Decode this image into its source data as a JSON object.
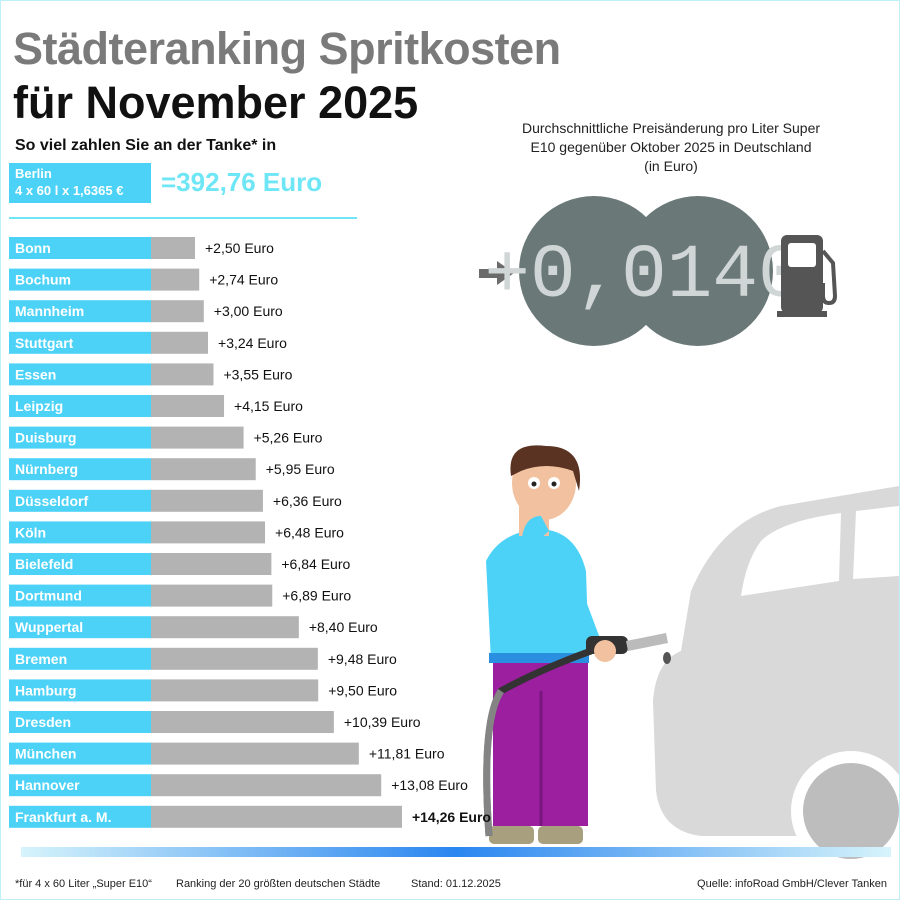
{
  "title_line1": "Städteranking Spritkosten",
  "title_line2": "für November 2025",
  "subtitle": "So viel zahlen Sie an der Tanke* in",
  "berlin": {
    "city": "Berlin",
    "formula": "4 x 60 l x 1,6365 €",
    "total": "=392,76 Euro"
  },
  "avg_change": {
    "label": "Durchschnittliche Preisänderung pro Liter Super E10 gegenüber Oktober 2025 in Deutschland (in Euro)",
    "value": "+0,0140"
  },
  "footer": {
    "note": "*für 4 x 60 Liter „Super E10“",
    "ranking": "Ranking der 20 größten deutschen Städte",
    "date": "Stand: 01.12.2025",
    "source": "Quelle: infoRoad GmbH/Clever Tanken"
  },
  "colors": {
    "label_bg": "#4dd2f7",
    "bar": "#b3b3b3",
    "gauge": "#6b7878"
  },
  "chart_data": {
    "type": "bar",
    "orientation": "horizontal",
    "categories": [
      "Bonn",
      "Bochum",
      "Mannheim",
      "Stuttgart",
      "Essen",
      "Leipzig",
      "Duisburg",
      "Nürnberg",
      "Düsseldorf",
      "Köln",
      "Bielefeld",
      "Dortmund",
      "Wuppertal",
      "Bremen",
      "Hamburg",
      "Dresden",
      "München",
      "Hannover",
      "Frankfurt a. M."
    ],
    "values": [
      2.5,
      2.74,
      3.0,
      3.24,
      3.55,
      4.15,
      5.26,
      5.95,
      6.36,
      6.48,
      6.84,
      6.89,
      8.4,
      9.48,
      9.5,
      10.39,
      11.81,
      13.08,
      14.26
    ],
    "data_labels": [
      "+2,50 Euro",
      "+2,74 Euro",
      "+3,00 Euro",
      "+3,24 Euro",
      "+3,55 Euro",
      "+4,15 Euro",
      "+5,26 Euro",
      "+5,95 Euro",
      "+6,36 Euro",
      "+6,48 Euro",
      "+6,84 Euro",
      "+6,89 Euro",
      "+8,40 Euro",
      "+9,48 Euro",
      "+9,50 Euro",
      "+10,39 Euro",
      "+11,81 Euro",
      "+13,08 Euro",
      "+14,26 Euro"
    ]
  }
}
